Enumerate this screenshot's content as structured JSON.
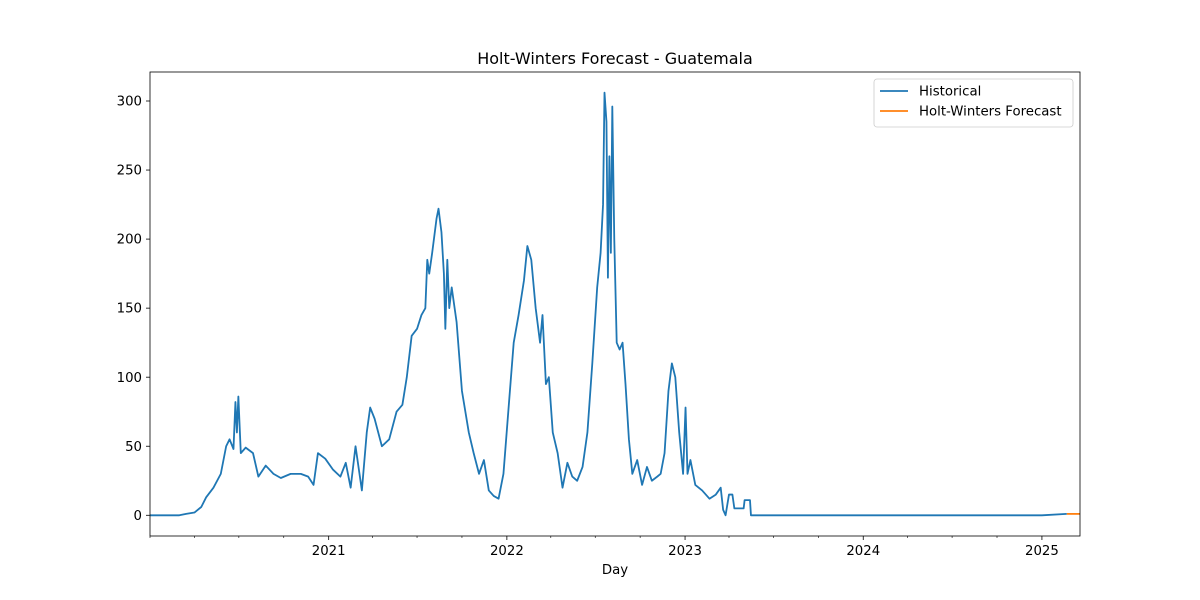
{
  "chart_data": {
    "type": "line",
    "title": "Holt-Winters Forecast - Guatemala",
    "xlabel": "Day",
    "ylabel": "",
    "x_type": "date",
    "xlim": [
      "2020-01-01",
      "2025-03-20"
    ],
    "ylim": [
      -15,
      321
    ],
    "x_ticks": [
      {
        "date": "2021-01-01",
        "label": "2021"
      },
      {
        "date": "2022-01-01",
        "label": "2022"
      },
      {
        "date": "2023-01-01",
        "label": "2023"
      },
      {
        "date": "2024-01-01",
        "label": "2024"
      },
      {
        "date": "2025-01-01",
        "label": "2025"
      }
    ],
    "y_ticks": [
      0,
      50,
      100,
      150,
      200,
      250,
      300
    ],
    "grid": false,
    "legend_position": "top-right",
    "series": [
      {
        "name": "Historical",
        "color": "#1f77b4",
        "points": [
          [
            "2020-01-01",
            0
          ],
          [
            "2020-03-01",
            0
          ],
          [
            "2020-03-15",
            1
          ],
          [
            "2020-04-01",
            2
          ],
          [
            "2020-04-15",
            6
          ],
          [
            "2020-04-25",
            13
          ],
          [
            "2020-05-10",
            20
          ],
          [
            "2020-05-25",
            30
          ],
          [
            "2020-06-05",
            50
          ],
          [
            "2020-06-12",
            55
          ],
          [
            "2020-06-20",
            48
          ],
          [
            "2020-06-24",
            82
          ],
          [
            "2020-06-27",
            60
          ],
          [
            "2020-06-30",
            86
          ],
          [
            "2020-07-05",
            45
          ],
          [
            "2020-07-15",
            49
          ],
          [
            "2020-07-30",
            45
          ],
          [
            "2020-08-10",
            28
          ],
          [
            "2020-08-25",
            36
          ],
          [
            "2020-09-10",
            30
          ],
          [
            "2020-09-25",
            27
          ],
          [
            "2020-10-15",
            30
          ],
          [
            "2020-11-05",
            30
          ],
          [
            "2020-11-20",
            28
          ],
          [
            "2020-12-01",
            22
          ],
          [
            "2020-12-10",
            45
          ],
          [
            "2020-12-25",
            41
          ],
          [
            "2021-01-10",
            33
          ],
          [
            "2021-01-25",
            28
          ],
          [
            "2021-02-05",
            38
          ],
          [
            "2021-02-15",
            20
          ],
          [
            "2021-02-25",
            50
          ],
          [
            "2021-03-10",
            18
          ],
          [
            "2021-03-20",
            60
          ],
          [
            "2021-03-27",
            78
          ],
          [
            "2021-04-05",
            70
          ],
          [
            "2021-04-20",
            50
          ],
          [
            "2021-05-05",
            55
          ],
          [
            "2021-05-20",
            75
          ],
          [
            "2021-06-01",
            80
          ],
          [
            "2021-06-10",
            100
          ],
          [
            "2021-06-20",
            130
          ],
          [
            "2021-07-01",
            135
          ],
          [
            "2021-07-10",
            145
          ],
          [
            "2021-07-18",
            150
          ],
          [
            "2021-07-22",
            185
          ],
          [
            "2021-07-26",
            175
          ],
          [
            "2021-08-01",
            190
          ],
          [
            "2021-08-10",
            215
          ],
          [
            "2021-08-14",
            222
          ],
          [
            "2021-08-20",
            205
          ],
          [
            "2021-08-25",
            175
          ],
          [
            "2021-08-28",
            135
          ],
          [
            "2021-09-01",
            185
          ],
          [
            "2021-09-05",
            150
          ],
          [
            "2021-09-10",
            165
          ],
          [
            "2021-09-20",
            140
          ],
          [
            "2021-10-01",
            90
          ],
          [
            "2021-10-15",
            60
          ],
          [
            "2021-10-25",
            45
          ],
          [
            "2021-11-05",
            30
          ],
          [
            "2021-11-15",
            40
          ],
          [
            "2021-11-25",
            18
          ],
          [
            "2021-12-05",
            14
          ],
          [
            "2021-12-15",
            12
          ],
          [
            "2021-12-25",
            30
          ],
          [
            "2022-01-05",
            80
          ],
          [
            "2022-01-15",
            125
          ],
          [
            "2022-01-25",
            145
          ],
          [
            "2022-02-05",
            170
          ],
          [
            "2022-02-12",
            195
          ],
          [
            "2022-02-20",
            185
          ],
          [
            "2022-03-01",
            150
          ],
          [
            "2022-03-10",
            125
          ],
          [
            "2022-03-15",
            145
          ],
          [
            "2022-03-22",
            95
          ],
          [
            "2022-03-28",
            100
          ],
          [
            "2022-04-05",
            60
          ],
          [
            "2022-04-15",
            45
          ],
          [
            "2022-04-25",
            20
          ],
          [
            "2022-05-05",
            38
          ],
          [
            "2022-05-15",
            28
          ],
          [
            "2022-05-25",
            25
          ],
          [
            "2022-06-05",
            35
          ],
          [
            "2022-06-15",
            60
          ],
          [
            "2022-06-25",
            110
          ],
          [
            "2022-07-05",
            165
          ],
          [
            "2022-07-12",
            190
          ],
          [
            "2022-07-17",
            225
          ],
          [
            "2022-07-20",
            306
          ],
          [
            "2022-07-24",
            285
          ],
          [
            "2022-07-27",
            172
          ],
          [
            "2022-07-30",
            260
          ],
          [
            "2022-08-02",
            190
          ],
          [
            "2022-08-05",
            296
          ],
          [
            "2022-08-09",
            200
          ],
          [
            "2022-08-14",
            125
          ],
          [
            "2022-08-20",
            120
          ],
          [
            "2022-08-26",
            125
          ],
          [
            "2022-09-01",
            95
          ],
          [
            "2022-09-08",
            55
          ],
          [
            "2022-09-15",
            30
          ],
          [
            "2022-09-25",
            40
          ],
          [
            "2022-10-05",
            22
          ],
          [
            "2022-10-15",
            35
          ],
          [
            "2022-10-25",
            25
          ],
          [
            "2022-11-05",
            28
          ],
          [
            "2022-11-12",
            30
          ],
          [
            "2022-11-20",
            45
          ],
          [
            "2022-11-28",
            90
          ],
          [
            "2022-12-05",
            110
          ],
          [
            "2022-12-12",
            100
          ],
          [
            "2022-12-20",
            60
          ],
          [
            "2022-12-28",
            30
          ],
          [
            "2023-01-02",
            78
          ],
          [
            "2023-01-06",
            30
          ],
          [
            "2023-01-12",
            40
          ],
          [
            "2023-01-22",
            22
          ],
          [
            "2023-02-05",
            18
          ],
          [
            "2023-02-20",
            12
          ],
          [
            "2023-03-05",
            15
          ],
          [
            "2023-03-15",
            20
          ],
          [
            "2023-03-20",
            4
          ],
          [
            "2023-03-25",
            0
          ],
          [
            "2023-04-01",
            15
          ],
          [
            "2023-04-08",
            15
          ],
          [
            "2023-04-12",
            5
          ],
          [
            "2023-05-01",
            5
          ],
          [
            "2023-05-03",
            11
          ],
          [
            "2023-05-14",
            11
          ],
          [
            "2023-05-16",
            0
          ],
          [
            "2025-01-01",
            0
          ],
          [
            "2025-02-21",
            1
          ]
        ]
      },
      {
        "name": "Holt-Winters Forecast",
        "color": "#ff7f0e",
        "points": [
          [
            "2025-02-21",
            1
          ],
          [
            "2025-03-20",
            1
          ]
        ]
      }
    ]
  }
}
